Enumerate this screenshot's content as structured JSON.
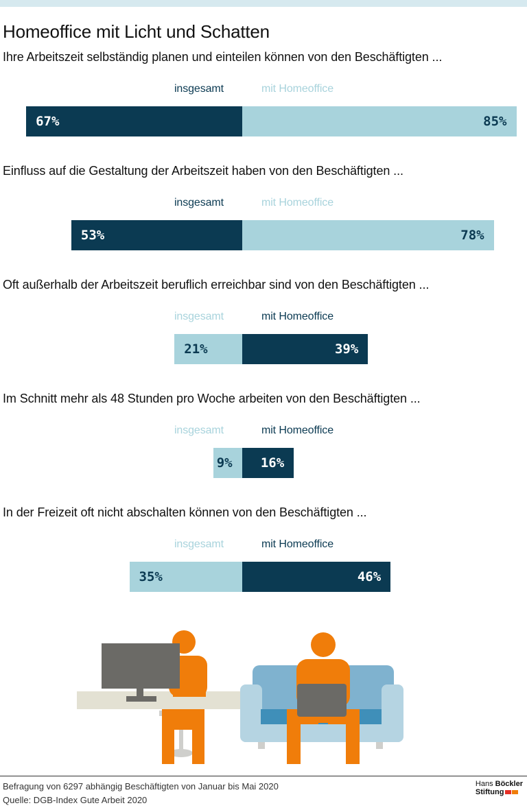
{
  "title": "Homeoffice mit Licht und Schatten",
  "colors": {
    "dark": "#0b3a52",
    "light": "#a8d3dc",
    "orange": "#f07d0a",
    "gray": "#6b6a66"
  },
  "chart_data": [
    {
      "type": "bar",
      "question": "Ihre Arbeitszeit selbständig planen und einteilen können von den Beschäftigten ...",
      "labels": {
        "left": "insgesamt",
        "right": "mit Homeoffice"
      },
      "values": {
        "insgesamt": 67,
        "mit_homeoffice": 85
      },
      "value_text": {
        "left": "67%",
        "right": "85%"
      },
      "left_color": "dark"
    },
    {
      "type": "bar",
      "question": "Einfluss auf die Gestaltung der Arbeitszeit haben von den Beschäftigten ...",
      "labels": {
        "left": "insgesamt",
        "right": "mit Homeoffice"
      },
      "values": {
        "insgesamt": 53,
        "mit_homeoffice": 78
      },
      "value_text": {
        "left": "53%",
        "right": "78%"
      },
      "left_color": "dark"
    },
    {
      "type": "bar",
      "question": "Oft außerhalb der Arbeitszeit beruflich erreichbar sind von den Beschäftigten ...",
      "labels": {
        "left": "insgesamt",
        "right": "mit Homeoffice"
      },
      "values": {
        "insgesamt": 21,
        "mit_homeoffice": 39
      },
      "value_text": {
        "left": "21%",
        "right": "39%"
      },
      "left_color": "light"
    },
    {
      "type": "bar",
      "question": "Im Schnitt mehr als 48 Stunden pro Woche arbeiten von den Beschäftigten ...",
      "labels": {
        "left": "insgesamt",
        "right": "mit Homeoffice"
      },
      "values": {
        "insgesamt": 9,
        "mit_homeoffice": 16
      },
      "value_text": {
        "left": "9%",
        "right": "16%"
      },
      "left_color": "light"
    },
    {
      "type": "bar",
      "question": "In der Freizeit oft nicht abschalten können von den Beschäftigten ...",
      "labels": {
        "left": "insgesamt",
        "right": "mit Homeoffice"
      },
      "values": {
        "insgesamt": 35,
        "mit_homeoffice": 46
      },
      "value_text": {
        "left": "35%",
        "right": "46%"
      },
      "left_color": "light"
    }
  ],
  "footer": {
    "note": "Befragung von 6297 abhängig Beschäftigten von Januar bis Mai 2020",
    "source": "Quelle: DGB-Index Gute Arbeit 2020"
  },
  "logo": {
    "line1a": "Hans",
    "line1b": "Böckler",
    "line2": "Stiftung"
  }
}
